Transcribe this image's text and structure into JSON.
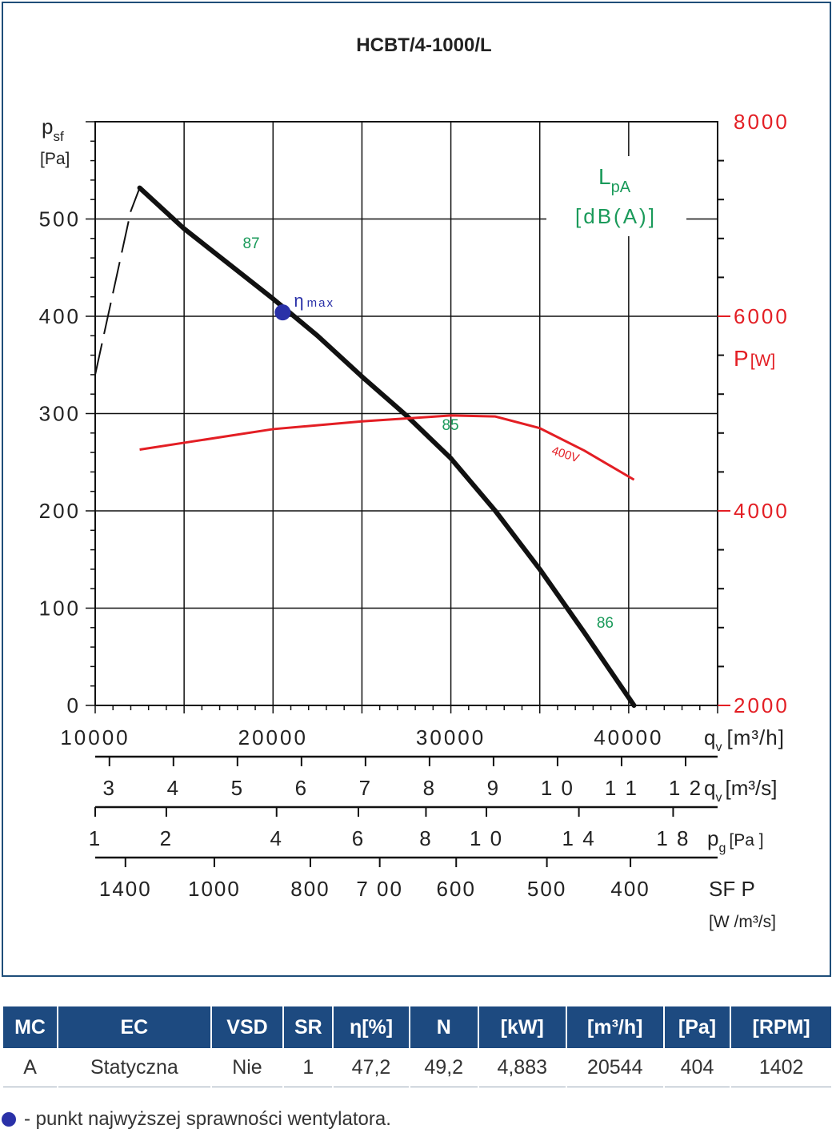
{
  "chart_data": {
    "type": "line",
    "title": "HCBT/4-1000/L",
    "left_axis": {
      "label_main": "p",
      "label_sub": "sf",
      "unit": "[Pa]",
      "ylim": [
        0,
        600
      ],
      "ticks": [
        "0",
        "100",
        "200",
        "300",
        "400",
        "500"
      ],
      "tick_values": [
        0,
        100,
        200,
        300,
        400,
        500
      ]
    },
    "right_axis": {
      "label_main": "P",
      "label_unit": "[W]",
      "ylim": [
        2000,
        8000
      ],
      "ticks": [
        "2000",
        "4000",
        "6000",
        "8000"
      ],
      "tick_values": [
        2000,
        4000,
        6000,
        8000
      ],
      "color": "#e31e24"
    },
    "x_axis": {
      "label_main": "q",
      "label_sub": "v",
      "label_unit": "[m³/h]",
      "xlim": [
        10000,
        45000
      ],
      "ticks": [
        "10000",
        "20000",
        "30000",
        "40000"
      ],
      "tick_values": [
        10000,
        20000,
        30000,
        40000
      ]
    },
    "grid": true,
    "series": [
      {
        "type": "pressure",
        "color": "#111111",
        "points": [
          [
            12500,
            532
          ],
          [
            15000,
            490
          ],
          [
            20000,
            418
          ],
          [
            22500,
            380
          ],
          [
            25000,
            338
          ],
          [
            27500,
            298
          ],
          [
            30000,
            254
          ],
          [
            32500,
            200
          ],
          [
            35000,
            140
          ],
          [
            37500,
            75
          ],
          [
            40300,
            0
          ]
        ],
        "dashed_start": [
          [
            10000,
            340
          ],
          [
            12000,
            508
          ],
          [
            12500,
            532
          ]
        ]
      },
      {
        "type": "power",
        "name": "400V",
        "color": "#e31e24",
        "points": [
          [
            12500,
            4630
          ],
          [
            15000,
            4700
          ],
          [
            20000,
            4840
          ],
          [
            25000,
            4920
          ],
          [
            30000,
            4980
          ],
          [
            32500,
            4970
          ],
          [
            35000,
            4850
          ],
          [
            37500,
            4620
          ],
          [
            40300,
            4320
          ]
        ]
      }
    ],
    "eta_max": {
      "label": "η",
      "label_sub": "max",
      "x": 20544,
      "y": 404,
      "color": "#2a31a8"
    },
    "noise": {
      "label_main": "L",
      "label_sub": "pA",
      "label_unit": "[dB(A)]",
      "color": "#1a9a5a",
      "annotations": [
        {
          "text": "87",
          "x": 18300,
          "y": 470
        },
        {
          "text": "85",
          "x": 29500,
          "y": 283
        },
        {
          "text": "86",
          "x": 38200,
          "y": 80
        }
      ]
    },
    "secondary_scales": [
      {
        "name": "qv-m3s",
        "label_main": "q",
        "label_sub": "v",
        "label_unit": "[m³/s]",
        "ticks": [
          {
            "text": "3",
            "x": 10800
          },
          {
            "text": "4",
            "x": 14400
          },
          {
            "text": "5",
            "x": 18000
          },
          {
            "text": "6",
            "x": 21600
          },
          {
            "text": "7",
            "x": 25200
          },
          {
            "text": "8",
            "x": 28800
          },
          {
            "text": "9",
            "x": 32400
          },
          {
            "text": "1 0",
            "x": 36000
          },
          {
            "text": "1 1",
            "x": 39600
          },
          {
            "text": "1 2",
            "x": 43200
          }
        ]
      },
      {
        "name": "pg",
        "label_main": "p",
        "label_sub": "g",
        "label_unit": "[Pa ]",
        "ticks": [
          {
            "text": "1",
            "x": 10000
          },
          {
            "text": "2",
            "x": 14000
          },
          {
            "text": "4",
            "x": 20200
          },
          {
            "text": "6",
            "x": 24800
          },
          {
            "text": "8",
            "x": 28600
          },
          {
            "text": "1 0",
            "x": 32000
          },
          {
            "text": "1 4",
            "x": 37200
          },
          {
            "text": "1 8",
            "x": 42500
          }
        ]
      },
      {
        "name": "sfp",
        "label_main": "SF P",
        "label_unit": "[W /m³/s]",
        "ticks": [
          {
            "text": "1400",
            "x": 11700
          },
          {
            "text": "1000",
            "x": 16700
          },
          {
            "text": "800",
            "x": 22100
          },
          {
            "text": "7 00",
            "x": 26000
          },
          {
            "text": "600",
            "x": 30300
          },
          {
            "text": "500",
            "x": 35400
          },
          {
            "text": "400",
            "x": 40100
          }
        ]
      }
    ]
  },
  "table": {
    "headers": [
      "MC",
      "EC",
      "VSD",
      "SR",
      "η[%]",
      "N",
      "[kW]",
      "[m³/h]",
      "[Pa]",
      "[RPM]"
    ],
    "row": [
      "A",
      "Statyczna",
      "Nie",
      "1",
      "47,2",
      "49,2",
      "4,883",
      "20544",
      "404",
      "1402"
    ]
  },
  "footnote": "- punkt najwyższej sprawności wentylatora."
}
